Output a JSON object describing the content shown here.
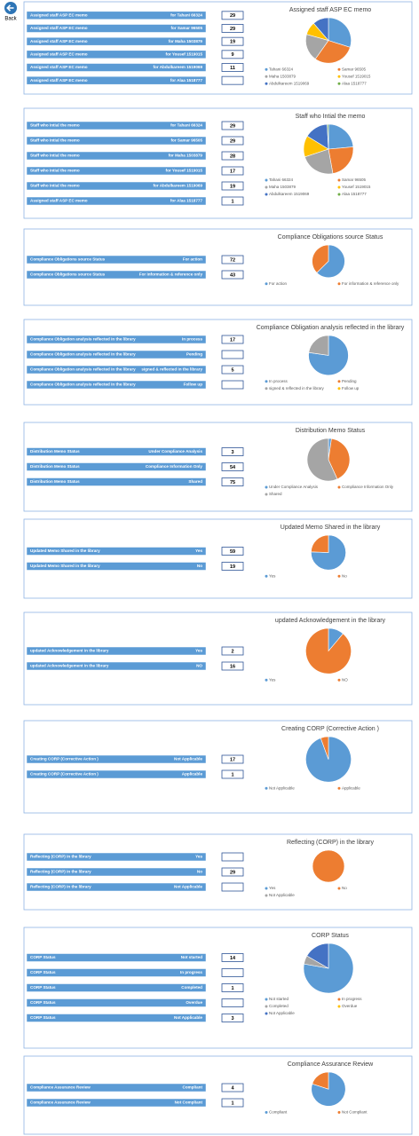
{
  "back": "Back",
  "panels": [
    {
      "title": "Assigned staff ASP EC memo",
      "colors": [
        "#5b9bd5",
        "#ed7d31",
        "#a5a5a5",
        "#ffc000",
        "#4472c4",
        "#70ad47"
      ],
      "rows": [
        {
          "label": "Assigned staff ASP EC memo",
          "detail": "for Tahani 66324",
          "value": 29
        },
        {
          "label": "Assigned staff ASP EC memo",
          "detail": "for Samar 96505",
          "value": 29
        },
        {
          "label": "Assigned staff ASP EC memo",
          "detail": "for Maha 1503879",
          "value": 19
        },
        {
          "label": "Assigned staff ASP EC memo",
          "detail": "for Yousef 1519015",
          "value": 9
        },
        {
          "label": "Assigned staff ASP EC memo",
          "detail": "for Abdulkareem 1519069",
          "value": 11
        },
        {
          "label": "Assigned staff ASP EC memo",
          "detail": "for Alaa 1518777",
          "value": null
        }
      ],
      "legend": [
        "Tahani 66324",
        "Samar 96505",
        "Maha 1503879",
        "Yousef 1519015",
        "Abdulkareem 1519069",
        "Alaa 1518777"
      ]
    },
    {
      "title": "Staff who Intial the memo",
      "colors": [
        "#5b9bd5",
        "#ed7d31",
        "#a5a5a5",
        "#ffc000",
        "#4472c4",
        "#70ad47"
      ],
      "rows": [
        {
          "label": "Staff who Intial the memo",
          "detail": "for Tahani 66324",
          "value": 29
        },
        {
          "label": "Staff who Intial the memo",
          "detail": "for Samar 96505",
          "value": 29
        },
        {
          "label": "Staff who Intial the memo",
          "detail": "for Maha 1503879",
          "value": 28
        },
        {
          "label": "Staff who Intial the memo",
          "detail": "for Yousef 1519015",
          "value": 17
        },
        {
          "label": "Staff who Intial the memo",
          "detail": "for Abdulkareem 1519069",
          "value": 19
        },
        {
          "label": "Assigned staff ASP EC memo",
          "detail": "for Alaa 1518777",
          "value": 1
        }
      ],
      "legend": [
        "Tahani 66324",
        "Samar 96505",
        "Maha 1503879",
        "Yousef 1519015",
        "Abdulkareem 1519069",
        "Alaa 1518777"
      ]
    },
    {
      "title": "Compliance Obligations source Status",
      "colors": [
        "#5b9bd5",
        "#ed7d31"
      ],
      "rows": [
        {
          "label": "Compliance Obligations source Status",
          "detail": "For action",
          "value": 72
        },
        {
          "label": "Compliance Obligations source Status",
          "detail": "For information & reference only",
          "value": 43
        }
      ],
      "legend": [
        "For action",
        "For information & reference only"
      ]
    },
    {
      "title": "Compliance Obligation analysis reflected in the library",
      "colors": [
        "#5b9bd5",
        "#ed7d31",
        "#a5a5a5",
        "#ffc000"
      ],
      "rows": [
        {
          "label": "Compliance Obligation analysis reflected in the library",
          "detail": "In process",
          "value": 17
        },
        {
          "label": "Compliance Obligation analysis reflected in the library",
          "detail": "Pending",
          "value": null
        },
        {
          "label": "Compliance Obligation analysis reflected in the library",
          "detail": "signed & reflected in the library",
          "value": 5
        },
        {
          "label": "Compliance Obligation analysis reflected in the library",
          "detail": "Follow up",
          "value": null
        }
      ],
      "legend": [
        "In process",
        "Pending",
        "signed & reflected in the library",
        "Follow up"
      ]
    },
    {
      "title": "Distribution Memo Status",
      "colors": [
        "#5b9bd5",
        "#ed7d31",
        "#a5a5a5"
      ],
      "rows": [
        {
          "label": "Distribution Memo Status",
          "detail": "Under Compliance Analysis",
          "value": 3
        },
        {
          "label": "Distribution Memo Status",
          "detail": "Compliance Information Only",
          "value": 54
        },
        {
          "label": "Distribution Memo Status",
          "detail": "Shared",
          "value": 75
        }
      ],
      "legend": [
        "Under Compliance Analysis",
        "Compliance Information Only",
        "Shared"
      ]
    },
    {
      "title": "Updated Memo Shared in the library",
      "colors": [
        "#5b9bd5",
        "#ed7d31"
      ],
      "rows": [
        {
          "label": "Updated Memo Shared in the library",
          "detail": "Yes",
          "value": 59
        },
        {
          "label": "Updated Memo Shared in the library",
          "detail": "No",
          "value": 19
        }
      ],
      "legend": [
        "Yes",
        "No"
      ]
    },
    {
      "title": "updated Acknowledgement  in the library",
      "colors": [
        "#5b9bd5",
        "#ed7d31"
      ],
      "rows": [
        {
          "label": "updated Acknowledgement  in the library",
          "detail": "Yes",
          "value": 2
        },
        {
          "label": "updated Acknowledgement  in the library",
          "detail": "NO",
          "value": 16
        }
      ],
      "legend": [
        "Yes",
        "NO"
      ]
    },
    {
      "title": "Creating CORP (Corrective Action )",
      "colors": [
        "#5b9bd5",
        "#ed7d31"
      ],
      "rows": [
        {
          "label": "Creating CORP (Corrective Action )",
          "detail": "Not Applicable",
          "value": 17
        },
        {
          "label": "Creating CORP (Corrective Action )",
          "detail": "Applicable",
          "value": 1
        }
      ],
      "legend": [
        "Not Applicable",
        "Applicable"
      ]
    },
    {
      "title": "Reflecting (CORP) in the library",
      "colors": [
        "#5b9bd5",
        "#ed7d31",
        "#a5a5a5"
      ],
      "rows": [
        {
          "label": "Reflecting (CORP) in the library",
          "detail": "Yes",
          "value": null
        },
        {
          "label": "Reflecting (CORP) in the library",
          "detail": "No",
          "value": 29
        },
        {
          "label": "Reflecting (CORP) in the library",
          "detail": "Not Applicable",
          "value": null
        }
      ],
      "legend": [
        "Yes",
        "No",
        "Not Applicable"
      ]
    },
    {
      "title": "CORP Status",
      "colors": [
        "#5b9bd5",
        "#ed7d31",
        "#a5a5a5",
        "#ffc000",
        "#4472c4"
      ],
      "rows": [
        {
          "label": "CORP Status",
          "detail": "Not started",
          "value": 14
        },
        {
          "label": "CORP Status",
          "detail": "In progress",
          "value": null
        },
        {
          "label": "CORP Status",
          "detail": "Completed",
          "value": 1
        },
        {
          "label": "CORP Status",
          "detail": "Overdue",
          "value": null
        },
        {
          "label": "CORP Status",
          "detail": "Not Applicable",
          "value": 3
        }
      ],
      "legend": [
        "Not started",
        "In progress",
        "Completed",
        "Overdue",
        "Not Applicable"
      ]
    },
    {
      "title": "Compliance Assurance Review",
      "colors": [
        "#5b9bd5",
        "#ed7d31"
      ],
      "rows": [
        {
          "label": "Compliance Assurance Review",
          "detail": "Compliant",
          "value": 4
        },
        {
          "label": "Compliance Assurance Review",
          "detail": "Not Compliant",
          "value": 1
        }
      ],
      "legend": [
        "Compliant",
        "Not Compliant"
      ]
    }
  ]
}
